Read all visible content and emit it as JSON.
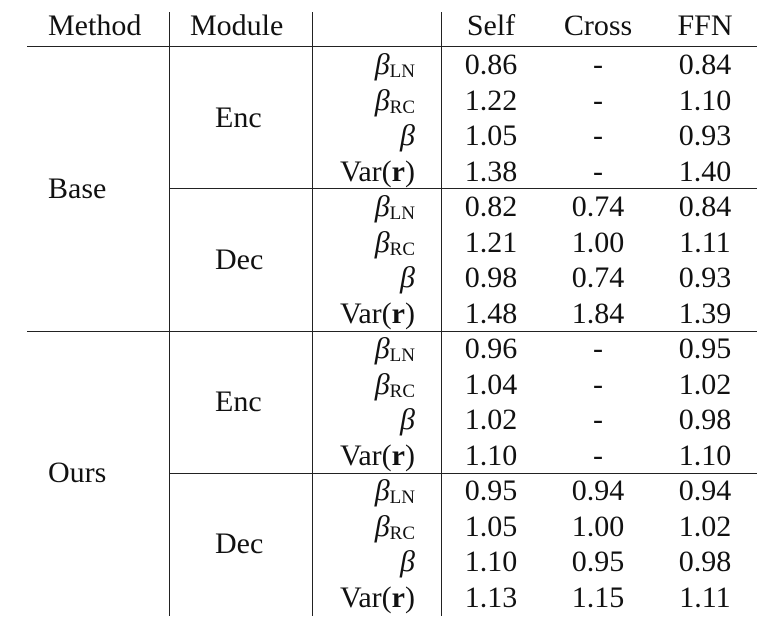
{
  "columns": [
    "Method",
    "Module",
    "",
    "Self",
    "Cross",
    "FFN"
  ],
  "metric_symbols": {
    "beta": "β",
    "sub_ln": "LN",
    "sub_rc": "RC",
    "var_prefix": "Var(",
    "var_r": "r",
    "var_suffix": ")"
  },
  "groups": [
    {
      "method": "Base",
      "modules": [
        {
          "module": "Enc",
          "rows": [
            {
              "metric": "beta_ln",
              "self": "0.86",
              "cross": "-",
              "ffn": "0.84"
            },
            {
              "metric": "beta_rc",
              "self": "1.22",
              "cross": "-",
              "ffn": "1.10"
            },
            {
              "metric": "beta",
              "self": "1.05",
              "cross": "-",
              "ffn": "0.93"
            },
            {
              "metric": "var_r",
              "self": "1.38",
              "cross": "-",
              "ffn": "1.40"
            }
          ]
        },
        {
          "module": "Dec",
          "rows": [
            {
              "metric": "beta_ln",
              "self": "0.82",
              "cross": "0.74",
              "ffn": "0.84"
            },
            {
              "metric": "beta_rc",
              "self": "1.21",
              "cross": "1.00",
              "ffn": "1.11"
            },
            {
              "metric": "beta",
              "self": "0.98",
              "cross": "0.74",
              "ffn": "0.93"
            },
            {
              "metric": "var_r",
              "self": "1.48",
              "cross": "1.84",
              "ffn": "1.39"
            }
          ]
        }
      ]
    },
    {
      "method": "Ours",
      "modules": [
        {
          "module": "Enc",
          "rows": [
            {
              "metric": "beta_ln",
              "self": "0.96",
              "cross": "-",
              "ffn": "0.95"
            },
            {
              "metric": "beta_rc",
              "self": "1.04",
              "cross": "-",
              "ffn": "1.02"
            },
            {
              "metric": "beta",
              "self": "1.02",
              "cross": "-",
              "ffn": "0.98"
            },
            {
              "metric": "var_r",
              "self": "1.10",
              "cross": "-",
              "ffn": "1.10"
            }
          ]
        },
        {
          "module": "Dec",
          "rows": [
            {
              "metric": "beta_ln",
              "self": "0.95",
              "cross": "0.94",
              "ffn": "0.94"
            },
            {
              "metric": "beta_rc",
              "self": "1.05",
              "cross": "1.00",
              "ffn": "1.02"
            },
            {
              "metric": "beta",
              "self": "1.10",
              "cross": "0.95",
              "ffn": "0.98"
            },
            {
              "metric": "var_r",
              "self": "1.13",
              "cross": "1.15",
              "ffn": "1.11"
            }
          ]
        }
      ]
    }
  ]
}
